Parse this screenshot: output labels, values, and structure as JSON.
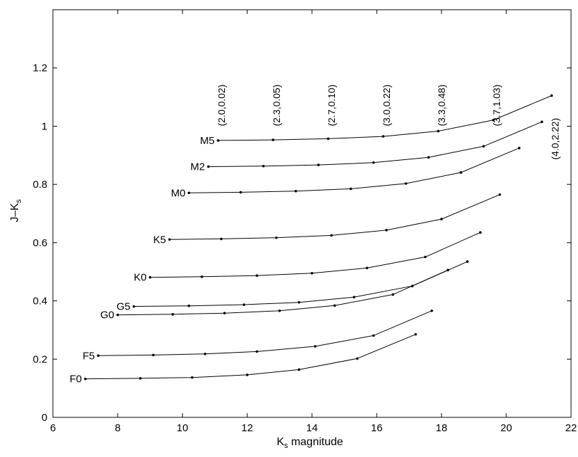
{
  "chart_data": {
    "type": "line",
    "xlabel": {
      "main": "K",
      "sub": "s",
      "rest": " magnitude"
    },
    "ylabel": {
      "main": "J–K",
      "sub": "s"
    },
    "xlim": [
      6,
      22
    ],
    "ylim": [
      0,
      1.4
    ],
    "xticks": [
      6,
      8,
      10,
      12,
      14,
      16,
      18,
      20,
      22
    ],
    "yticks": [
      0,
      0.2,
      0.4,
      0.6,
      0.8,
      1,
      1.2
    ],
    "xtick_labels": [
      "6",
      "8",
      "10",
      "12",
      "14",
      "16",
      "18",
      "20",
      "22"
    ],
    "ytick_labels": [
      "0",
      "0.2",
      "0.4",
      "0.6",
      "0.8",
      "1",
      "1.2"
    ],
    "grid": false,
    "series": [
      {
        "name": "F0",
        "x": [
          7.0,
          8.7,
          10.3,
          12.0,
          13.6,
          15.4,
          17.2
        ],
        "y": [
          0.132,
          0.134,
          0.137,
          0.146,
          0.164,
          0.202,
          0.285
        ]
      },
      {
        "name": "F5",
        "x": [
          7.4,
          9.1,
          10.7,
          12.3,
          14.1,
          15.9,
          17.7
        ],
        "y": [
          0.212,
          0.214,
          0.218,
          0.226,
          0.244,
          0.281,
          0.366
        ]
      },
      {
        "name": "G0",
        "x": [
          8.0,
          9.7,
          11.3,
          13.0,
          14.7,
          16.5,
          18.2
        ],
        "y": [
          0.352,
          0.354,
          0.358,
          0.366,
          0.384,
          0.422,
          0.506
        ]
      },
      {
        "name": "G5",
        "x": [
          8.5,
          10.2,
          11.9,
          13.6,
          15.3,
          17.1,
          18.8
        ],
        "y": [
          0.381,
          0.383,
          0.387,
          0.395,
          0.413,
          0.451,
          0.535
        ]
      },
      {
        "name": "K0",
        "x": [
          9.0,
          10.6,
          12.3,
          14.0,
          15.7,
          17.5,
          19.2
        ],
        "y": [
          0.481,
          0.483,
          0.487,
          0.495,
          0.513,
          0.551,
          0.635
        ]
      },
      {
        "name": "K5",
        "x": [
          9.6,
          11.2,
          12.9,
          14.6,
          16.3,
          18.0,
          19.8
        ],
        "y": [
          0.611,
          0.613,
          0.617,
          0.625,
          0.643,
          0.681,
          0.765
        ]
      },
      {
        "name": "M0",
        "x": [
          10.2,
          11.8,
          13.5,
          15.2,
          16.9,
          18.6,
          20.4
        ],
        "y": [
          0.771,
          0.773,
          0.777,
          0.785,
          0.803,
          0.841,
          0.925
        ]
      },
      {
        "name": "M2",
        "x": [
          10.8,
          12.5,
          14.2,
          15.9,
          17.6,
          19.3,
          21.1
        ],
        "y": [
          0.861,
          0.863,
          0.867,
          0.875,
          0.893,
          0.931,
          1.015
        ]
      },
      {
        "name": "M5",
        "x": [
          11.1,
          12.8,
          14.5,
          16.2,
          17.9,
          19.6,
          21.4
        ],
        "y": [
          0.951,
          0.953,
          0.957,
          0.965,
          0.983,
          1.021,
          1.105
        ]
      }
    ],
    "annotations": [
      {
        "text": "(2.0,0.02)",
        "x": 11.2,
        "y": 1.0
      },
      {
        "text": "(2.3,0.05)",
        "x": 12.9,
        "y": 1.0
      },
      {
        "text": "(2.7,0.10)",
        "x": 14.6,
        "y": 1.0
      },
      {
        "text": "(3.0,0.22)",
        "x": 16.3,
        "y": 1.0
      },
      {
        "text": "(3.3,0.48)",
        "x": 18.0,
        "y": 1.0
      },
      {
        "text": "(3.7,1.03)",
        "x": 19.7,
        "y": 1.0
      },
      {
        "text": "(4.0,2.22)",
        "x": 21.5,
        "y": 0.885
      }
    ]
  }
}
